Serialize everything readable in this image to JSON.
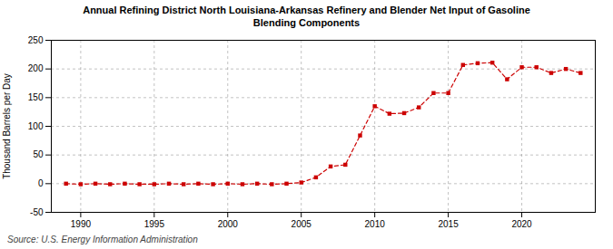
{
  "chart_data": {
    "type": "line",
    "title": "Annual Refining District North Louisiana-Arkansas Refinery and Blender Net Input of Gasoline\nBlending Components",
    "ylabel": "Thousand Barrels per Day",
    "source": "Source: U.S. Energy Information Administration",
    "x": [
      1989,
      1990,
      1991,
      1992,
      1993,
      1994,
      1995,
      1996,
      1997,
      1998,
      1999,
      2000,
      2001,
      2002,
      2003,
      2004,
      2005,
      2006,
      2007,
      2008,
      2009,
      2010,
      2011,
      2012,
      2013,
      2014,
      2015,
      2016,
      2017,
      2018,
      2019,
      2020,
      2021,
      2022,
      2023,
      2024
    ],
    "values": [
      0,
      -1,
      0,
      -1,
      0,
      -1,
      -1,
      0,
      -1,
      0,
      -1,
      0,
      -1,
      0,
      -1,
      0,
      2,
      11,
      30,
      33,
      84,
      135,
      122,
      123,
      133,
      158,
      158,
      207,
      210,
      211,
      182,
      203,
      203,
      193,
      200,
      193
    ],
    "color": "#cc0000",
    "marker": "square",
    "line_style": "dashed",
    "xlim": [
      1988,
      2025
    ],
    "xticks": [
      1990,
      1995,
      2000,
      2005,
      2010,
      2015,
      2020
    ],
    "ylim": [
      -50,
      250
    ],
    "yticks": [
      -50,
      0,
      50,
      100,
      150,
      200,
      250
    ],
    "grid": true
  }
}
